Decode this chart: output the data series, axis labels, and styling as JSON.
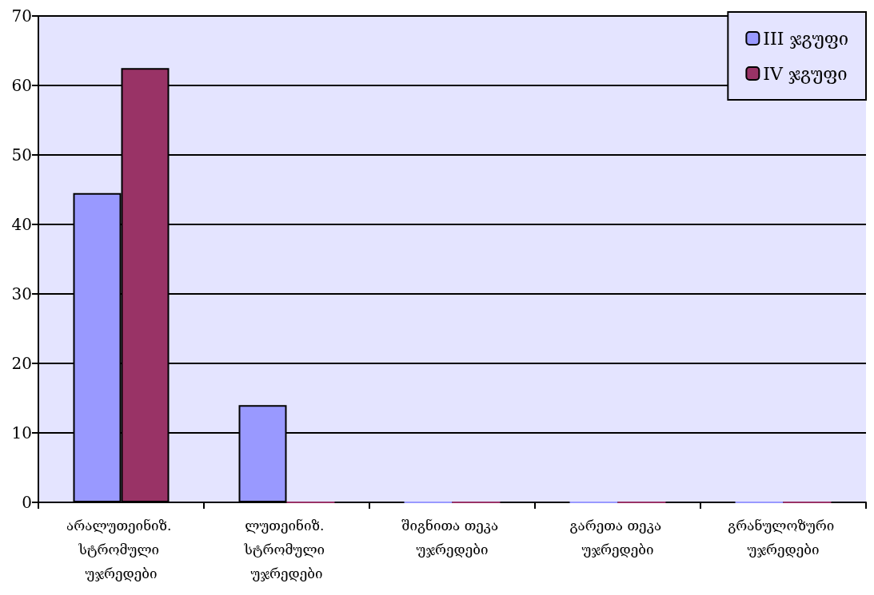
{
  "chart_data": {
    "type": "bar",
    "categories": [
      "არალუთეინიზ. სტრომული უჯრედები",
      "ლუთეინიზ. სტრომული უჯრედები",
      "შიგნითა თეკა უჯრედები",
      "გარეთა თეკა უჯრედები",
      "გრანულოზური უჯრედები"
    ],
    "series": [
      {
        "name": "III ჯგუფი",
        "color": "#9999ff",
        "values": [
          44.5,
          14,
          0,
          0,
          0
        ]
      },
      {
        "name": "IV ჯგუფი",
        "color": "#993366",
        "values": [
          62.5,
          0,
          0,
          0,
          0
        ]
      }
    ],
    "ylim": [
      0,
      70
    ],
    "yticks": [
      0,
      10,
      20,
      30,
      40,
      50,
      60,
      70
    ],
    "grid": "y",
    "legend": "top right"
  }
}
